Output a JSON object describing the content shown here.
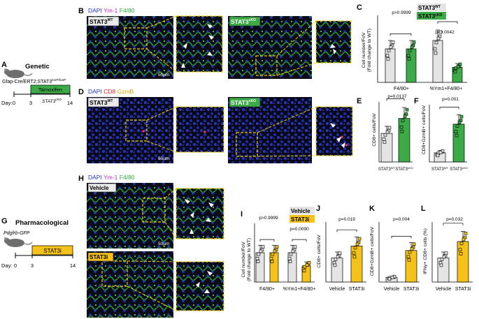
{
  "labels": {
    "A": "A",
    "B": "B",
    "C": "C",
    "D": "D",
    "E": "E",
    "F": "F",
    "G": "G",
    "H": "H",
    "I": "I",
    "J": "J",
    "K": "K",
    "L": "L"
  },
  "panelA": {
    "title": "Genetic",
    "line": "Gfap-Cre/ERT2;STAT3",
    "line_sup": "loxP/loxP",
    "box": "Tamoxifen",
    "day": "Day:",
    "d0": "0",
    "d3": "3",
    "d14": "14",
    "ko": "STAT3",
    "ko_sup": "cKO"
  },
  "panelG": {
    "title": "Pharmacological",
    "line": "Pdgfrb-GFP",
    "box": "STAT3i",
    "day": "Day:",
    "d0": "0",
    "d3": "3",
    "d14": "14"
  },
  "panelB": {
    "dapi": "DAPI",
    "ym1": "Ym-1",
    "f480": "F4/80",
    "wt": "STAT3",
    "wt_sup": "WT",
    "ko": "STAT3",
    "ko_sup": "cKO",
    "scale": "50µm"
  },
  "panelD": {
    "dapi": "DAPI",
    "cd8": "CD8",
    "gzmb": "GzmB",
    "wt": "STAT3",
    "wt_sup": "WT",
    "ko": "STAT3",
    "ko_sup": "cKO",
    "scale": "50µm"
  },
  "panelH": {
    "dapi": "DAPI",
    "ym1": "Ym-1",
    "f480": "F4/80",
    "vehicle": "Vehicle",
    "stat3i": "STAT3i",
    "scale": "50µm"
  },
  "panelC": {
    "ylabel1": "Cell number/FoV",
    "ylabel2": "(Fold change to WT)",
    "legend_wt": "STAT3",
    "legend_wt_sup": "WT",
    "legend_ko": "STAT3",
    "legend_ko_sup": "cKO",
    "p1": "p>0.9999",
    "p2": "p=0.0042",
    "x1": "F4/80+",
    "x2": "%Ym1+F4/80+"
  },
  "panelE": {
    "ylabel": "CD8+ cells/FoV",
    "p": "p=0.0137",
    "x1": "STAT3",
    "x1_sup": "WT",
    "x2": "STAT3",
    "x2_sup": "cKO"
  },
  "panelF": {
    "ylabel": "CD8+GzmB+ cells/FoV",
    "p": "p=0.001",
    "x1": "STAT3",
    "x1_sup": "WT",
    "x2": "STAT3",
    "x2_sup": "cKO"
  },
  "panelI": {
    "ylabel1": "Cell number/FoV",
    "ylabel2": "(Fold change to WT)",
    "legend_v": "Vehicle",
    "legend_s": "STAT3i",
    "p1": "p>0.9999",
    "p2": "p=0.0090",
    "x1": "F4/80+",
    "x2": "%Ym1+F4/80+"
  },
  "panelJ": {
    "ylabel": "CD8+ cells/FoV",
    "p": "p=0.019",
    "x1": "Vehicle",
    "x2": "STAT3i"
  },
  "panelK": {
    "ylabel": "CD8+GzmB+ cells/FoV",
    "p": "p=0.004",
    "x1": "Vehicle",
    "x2": "STAT3i"
  },
  "panelL": {
    "ylabel": "IFNγ+ CD8+ cells (%)",
    "p": "p=0.032",
    "x1": "Vehicle",
    "x2": "STAT3i"
  },
  "colors": {
    "green": "#3daa48",
    "yellow": "#f5c21a",
    "grey": "#e4e4e4",
    "dash": "#f0d000",
    "arrow": "#ffffff"
  },
  "chart_data": [
    {
      "panel": "C",
      "type": "bar",
      "categories": [
        "F4/80+",
        "%Ym1+F4/80+"
      ],
      "series": [
        {
          "values": [
            1.0,
            1.25
          ]
        },
        {
          "values": [
            1.0,
            0.45
          ]
        }
      ]
    },
    {
      "panel": "E",
      "type": "bar",
      "categories": [
        "STAT3WT",
        "STAT3cKO"
      ],
      "values": [
        9.5,
        14.5
      ]
    },
    {
      "panel": "F",
      "type": "bar",
      "categories": [
        "STAT3WT",
        "STAT3cKO"
      ],
      "values": [
        0.4,
        1.65
      ]
    },
    {
      "panel": "I",
      "type": "bar",
      "categories": [
        "F4/80+",
        "%Ym1+F4/80+"
      ],
      "series": [
        {
          "values": [
            1.0,
            1.0
          ]
        },
        {
          "values": [
            1.0,
            0.55
          ]
        }
      ]
    },
    {
      "panel": "J",
      "type": "bar",
      "categories": [
        "Vehicle",
        "STAT3i"
      ],
      "values": [
        8.0,
        12.0
      ]
    },
    {
      "panel": "K",
      "type": "bar",
      "categories": [
        "Vehicle",
        "STAT3i"
      ],
      "values": [
        0.3,
        2.1
      ]
    },
    {
      "panel": "L",
      "type": "bar",
      "categories": [
        "Vehicle",
        "STAT3i"
      ],
      "values": [
        8.0,
        13.5
      ]
    }
  ]
}
